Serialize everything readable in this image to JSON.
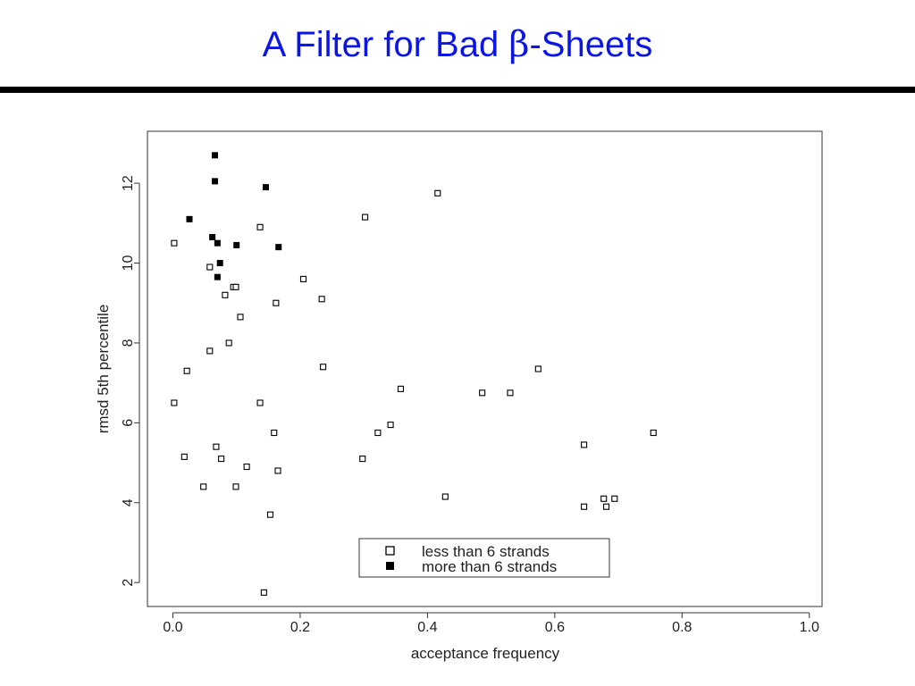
{
  "slide": {
    "title_prefix": "A Filter for Bad ",
    "title_symbol": "β",
    "title_suffix": "-Sheets",
    "title_color": "#0b16e6",
    "rule_color": "#000000"
  },
  "chart_data": {
    "type": "scatter",
    "title": "",
    "xlabel": "acceptance frequency",
    "ylabel": "rmsd 5th percentile",
    "xlim": [
      -0.04,
      1.02
    ],
    "ylim": [
      1.4,
      13.3
    ],
    "xticks": [
      0.0,
      0.2,
      0.4,
      0.6,
      0.8,
      1.0
    ],
    "xtick_labels": [
      "0.0",
      "0.2",
      "0.4",
      "0.6",
      "0.8",
      "1.0"
    ],
    "yticks": [
      2,
      4,
      6,
      8,
      10,
      12
    ],
    "ytick_labels": [
      "2",
      "4",
      "6",
      "8",
      "10",
      "12"
    ],
    "grid": false,
    "legend_position": "bottom-center",
    "series": [
      {
        "name": "less than 6 strands",
        "marker": "open-square",
        "color": "#000000",
        "points": [
          [
            0.002,
            10.5
          ],
          [
            0.002,
            6.5
          ],
          [
            0.018,
            5.15
          ],
          [
            0.022,
            7.3
          ],
          [
            0.048,
            4.4
          ],
          [
            0.058,
            7.8
          ],
          [
            0.058,
            9.9
          ],
          [
            0.068,
            5.4
          ],
          [
            0.076,
            5.1
          ],
          [
            0.082,
            9.2
          ],
          [
            0.088,
            8.0
          ],
          [
            0.095,
            9.4
          ],
          [
            0.099,
            9.4
          ],
          [
            0.099,
            4.4
          ],
          [
            0.106,
            8.65
          ],
          [
            0.116,
            4.9
          ],
          [
            0.137,
            10.9
          ],
          [
            0.137,
            6.5
          ],
          [
            0.143,
            1.75
          ],
          [
            0.153,
            3.7
          ],
          [
            0.159,
            5.75
          ],
          [
            0.162,
            9.0
          ],
          [
            0.165,
            4.8
          ],
          [
            0.205,
            9.6
          ],
          [
            0.234,
            9.1
          ],
          [
            0.236,
            7.4
          ],
          [
            0.298,
            5.1
          ],
          [
            0.302,
            11.15
          ],
          [
            0.322,
            5.75
          ],
          [
            0.342,
            5.95
          ],
          [
            0.358,
            6.85
          ],
          [
            0.416,
            11.75
          ],
          [
            0.428,
            4.15
          ],
          [
            0.486,
            6.75
          ],
          [
            0.53,
            6.75
          ],
          [
            0.574,
            7.35
          ],
          [
            0.646,
            5.45
          ],
          [
            0.646,
            3.9
          ],
          [
            0.677,
            4.1
          ],
          [
            0.681,
            3.9
          ],
          [
            0.694,
            4.1
          ],
          [
            0.755,
            5.75
          ]
        ]
      },
      {
        "name": "more than 6 strands",
        "marker": "filled-square",
        "color": "#000000",
        "points": [
          [
            0.026,
            11.1
          ],
          [
            0.062,
            10.65
          ],
          [
            0.066,
            12.7
          ],
          [
            0.066,
            12.05
          ],
          [
            0.07,
            10.5
          ],
          [
            0.07,
            9.65
          ],
          [
            0.074,
            10.0
          ],
          [
            0.1,
            10.45
          ],
          [
            0.146,
            11.9
          ],
          [
            0.166,
            10.4
          ]
        ]
      }
    ]
  }
}
